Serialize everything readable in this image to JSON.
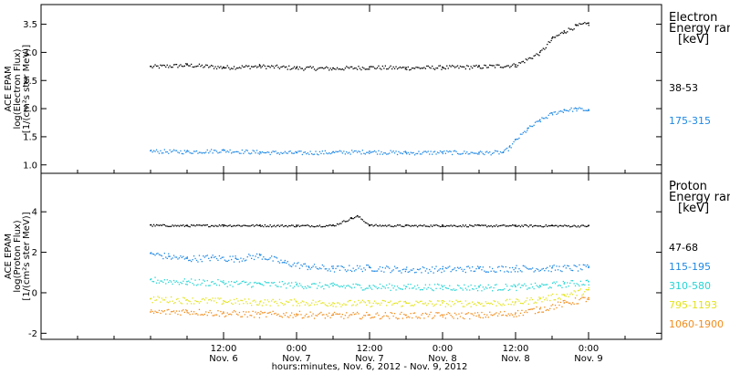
{
  "chart_data": [
    {
      "type": "scatter",
      "panel": "electron",
      "ylabel_lines": [
        "ACE EPAM",
        "log(Electron Flux)",
        "[1/(cm²s ster MeV)]"
      ],
      "ylim": [
        0.85,
        3.85
      ],
      "yticks": [
        1.0,
        1.5,
        2.0,
        2.5,
        3.0,
        3.5
      ],
      "yticklabels": [
        "1.0",
        "1.5",
        "2.0",
        "2.5",
        "3.0",
        "3.5"
      ],
      "legend_title_lines": [
        "Electron",
        "Energy ran",
        "[keV]"
      ],
      "series": [
        {
          "name": "38-53",
          "color": "#000000",
          "x": [
            0,
            6,
            12,
            18,
            24,
            30,
            36,
            42,
            48,
            54,
            60,
            64,
            66,
            68,
            70,
            72
          ],
          "y": [
            2.75,
            2.78,
            2.74,
            2.76,
            2.73,
            2.72,
            2.74,
            2.73,
            2.74,
            2.75,
            2.78,
            3.0,
            3.25,
            3.38,
            3.48,
            3.52
          ]
        },
        {
          "name": "175-315",
          "color": "#1e88e5",
          "x": [
            0,
            6,
            12,
            18,
            24,
            30,
            36,
            42,
            48,
            54,
            58,
            59,
            60,
            62,
            64,
            66,
            68,
            70,
            72
          ],
          "y": [
            1.25,
            1.24,
            1.26,
            1.23,
            1.22,
            1.23,
            1.24,
            1.22,
            1.23,
            1.22,
            1.23,
            1.32,
            1.45,
            1.65,
            1.8,
            1.92,
            1.98,
            2.0,
            1.98
          ]
        }
      ]
    },
    {
      "type": "scatter",
      "panel": "proton",
      "ylabel_lines": [
        "ACE EPAM",
        "log(Proton Flux)",
        "[1/(cm²s ster MeV)]"
      ],
      "ylim": [
        -2.3,
        5.9
      ],
      "yticks": [
        -2,
        0,
        2,
        4
      ],
      "yticklabels": [
        "-2",
        "0",
        "2",
        "4"
      ],
      "legend_title_lines": [
        "Proton",
        "Energy ran",
        "[keV]"
      ],
      "series": [
        {
          "name": "47-68",
          "color": "#000000",
          "x": [
            0,
            6,
            12,
            18,
            24,
            30,
            33,
            34,
            36,
            42,
            48,
            54,
            60,
            66,
            72
          ],
          "y": [
            3.35,
            3.33,
            3.35,
            3.34,
            3.33,
            3.34,
            3.7,
            3.8,
            3.35,
            3.33,
            3.34,
            3.33,
            3.33,
            3.33,
            3.32
          ]
        },
        {
          "name": "115-195",
          "color": "#1e88e5",
          "x": [
            0,
            3,
            6,
            10,
            14,
            18,
            22,
            26,
            30,
            36,
            42,
            48,
            54,
            60,
            66,
            72
          ],
          "y": [
            1.95,
            1.8,
            1.7,
            1.75,
            1.7,
            1.85,
            1.5,
            1.3,
            1.2,
            1.25,
            1.15,
            1.18,
            1.2,
            1.22,
            1.23,
            1.25
          ]
        },
        {
          "name": "310-580",
          "color": "#26d4d4",
          "x": [
            0,
            6,
            12,
            18,
            24,
            30,
            36,
            42,
            48,
            54,
            60,
            64,
            68,
            72
          ],
          "y": [
            0.65,
            0.55,
            0.5,
            0.45,
            0.4,
            0.35,
            0.32,
            0.3,
            0.3,
            0.28,
            0.3,
            0.35,
            0.45,
            0.55
          ]
        },
        {
          "name": "795-1193",
          "color": "#e3e31c",
          "x": [
            0,
            6,
            12,
            18,
            24,
            30,
            36,
            42,
            48,
            54,
            60,
            64,
            68,
            72
          ],
          "y": [
            -0.3,
            -0.35,
            -0.4,
            -0.45,
            -0.45,
            -0.5,
            -0.5,
            -0.5,
            -0.5,
            -0.5,
            -0.45,
            -0.3,
            -0.1,
            0.15
          ]
        },
        {
          "name": "1060-1900",
          "color": "#f28c1b",
          "x": [
            0,
            6,
            12,
            18,
            24,
            30,
            36,
            42,
            48,
            54,
            60,
            64,
            68,
            72
          ],
          "y": [
            -0.95,
            -0.9,
            -1.0,
            -1.05,
            -1.05,
            -1.1,
            -1.1,
            -1.1,
            -1.1,
            -1.1,
            -1.0,
            -0.8,
            -0.5,
            -0.25
          ]
        }
      ]
    }
  ],
  "x_axis": {
    "x_unit": "hours since start of Nov. 6, 2012",
    "xlim": [
      -18,
      84
    ],
    "tick_labels": [
      {
        "x": 12,
        "time": "12:00",
        "day": "Nov. 6"
      },
      {
        "x": 24,
        "time": "0:00",
        "day": "Nov. 7"
      },
      {
        "x": 36,
        "time": "12:00",
        "day": "Nov. 7"
      },
      {
        "x": 48,
        "time": "0:00",
        "day": "Nov. 8"
      },
      {
        "x": 60,
        "time": "12:00",
        "day": "Nov. 8"
      },
      {
        "x": 72,
        "time": "0:00",
        "day": "Nov. 9"
      }
    ],
    "label": "hours:minutes, Nov.  6, 2012 - Nov.  9, 2012"
  }
}
